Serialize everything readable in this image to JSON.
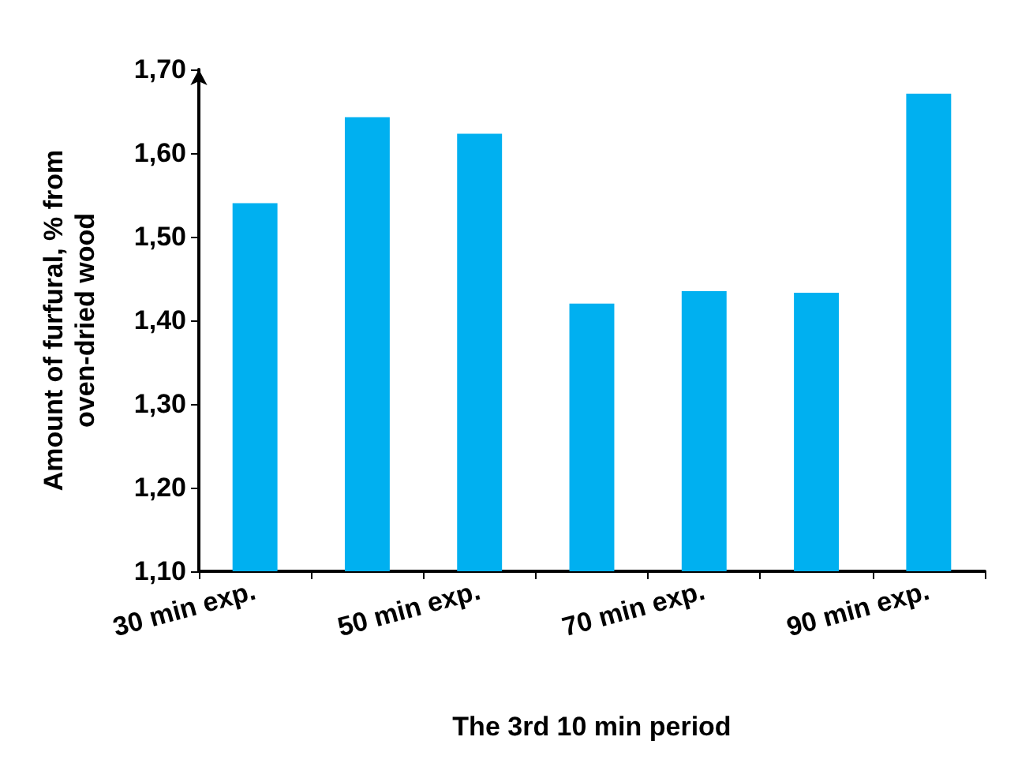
{
  "chart_data": {
    "type": "bar",
    "xlabel": "The 3rd 10 min period",
    "ylabel": "Amount of furfural, % from\noven-dried wood",
    "categories": [
      "30 min exp.",
      null,
      "50 min exp.",
      null,
      "70 min exp.",
      null,
      "90 min exp."
    ],
    "values": [
      1.54,
      1.643,
      1.623,
      1.42,
      1.435,
      1.433,
      1.671
    ],
    "color": "#00b0f0",
    "ylim": [
      1.1,
      1.7
    ],
    "yticks": [
      {
        "value": 1.1,
        "label": "1,10"
      },
      {
        "value": 1.2,
        "label": "1,20"
      },
      {
        "value": 1.3,
        "label": "1,30"
      },
      {
        "value": 1.4,
        "label": "1,40"
      },
      {
        "value": 1.5,
        "label": "1,50"
      },
      {
        "value": 1.6,
        "label": "1,60"
      },
      {
        "value": 1.7,
        "label": "1,70"
      }
    ],
    "grid": false
  }
}
